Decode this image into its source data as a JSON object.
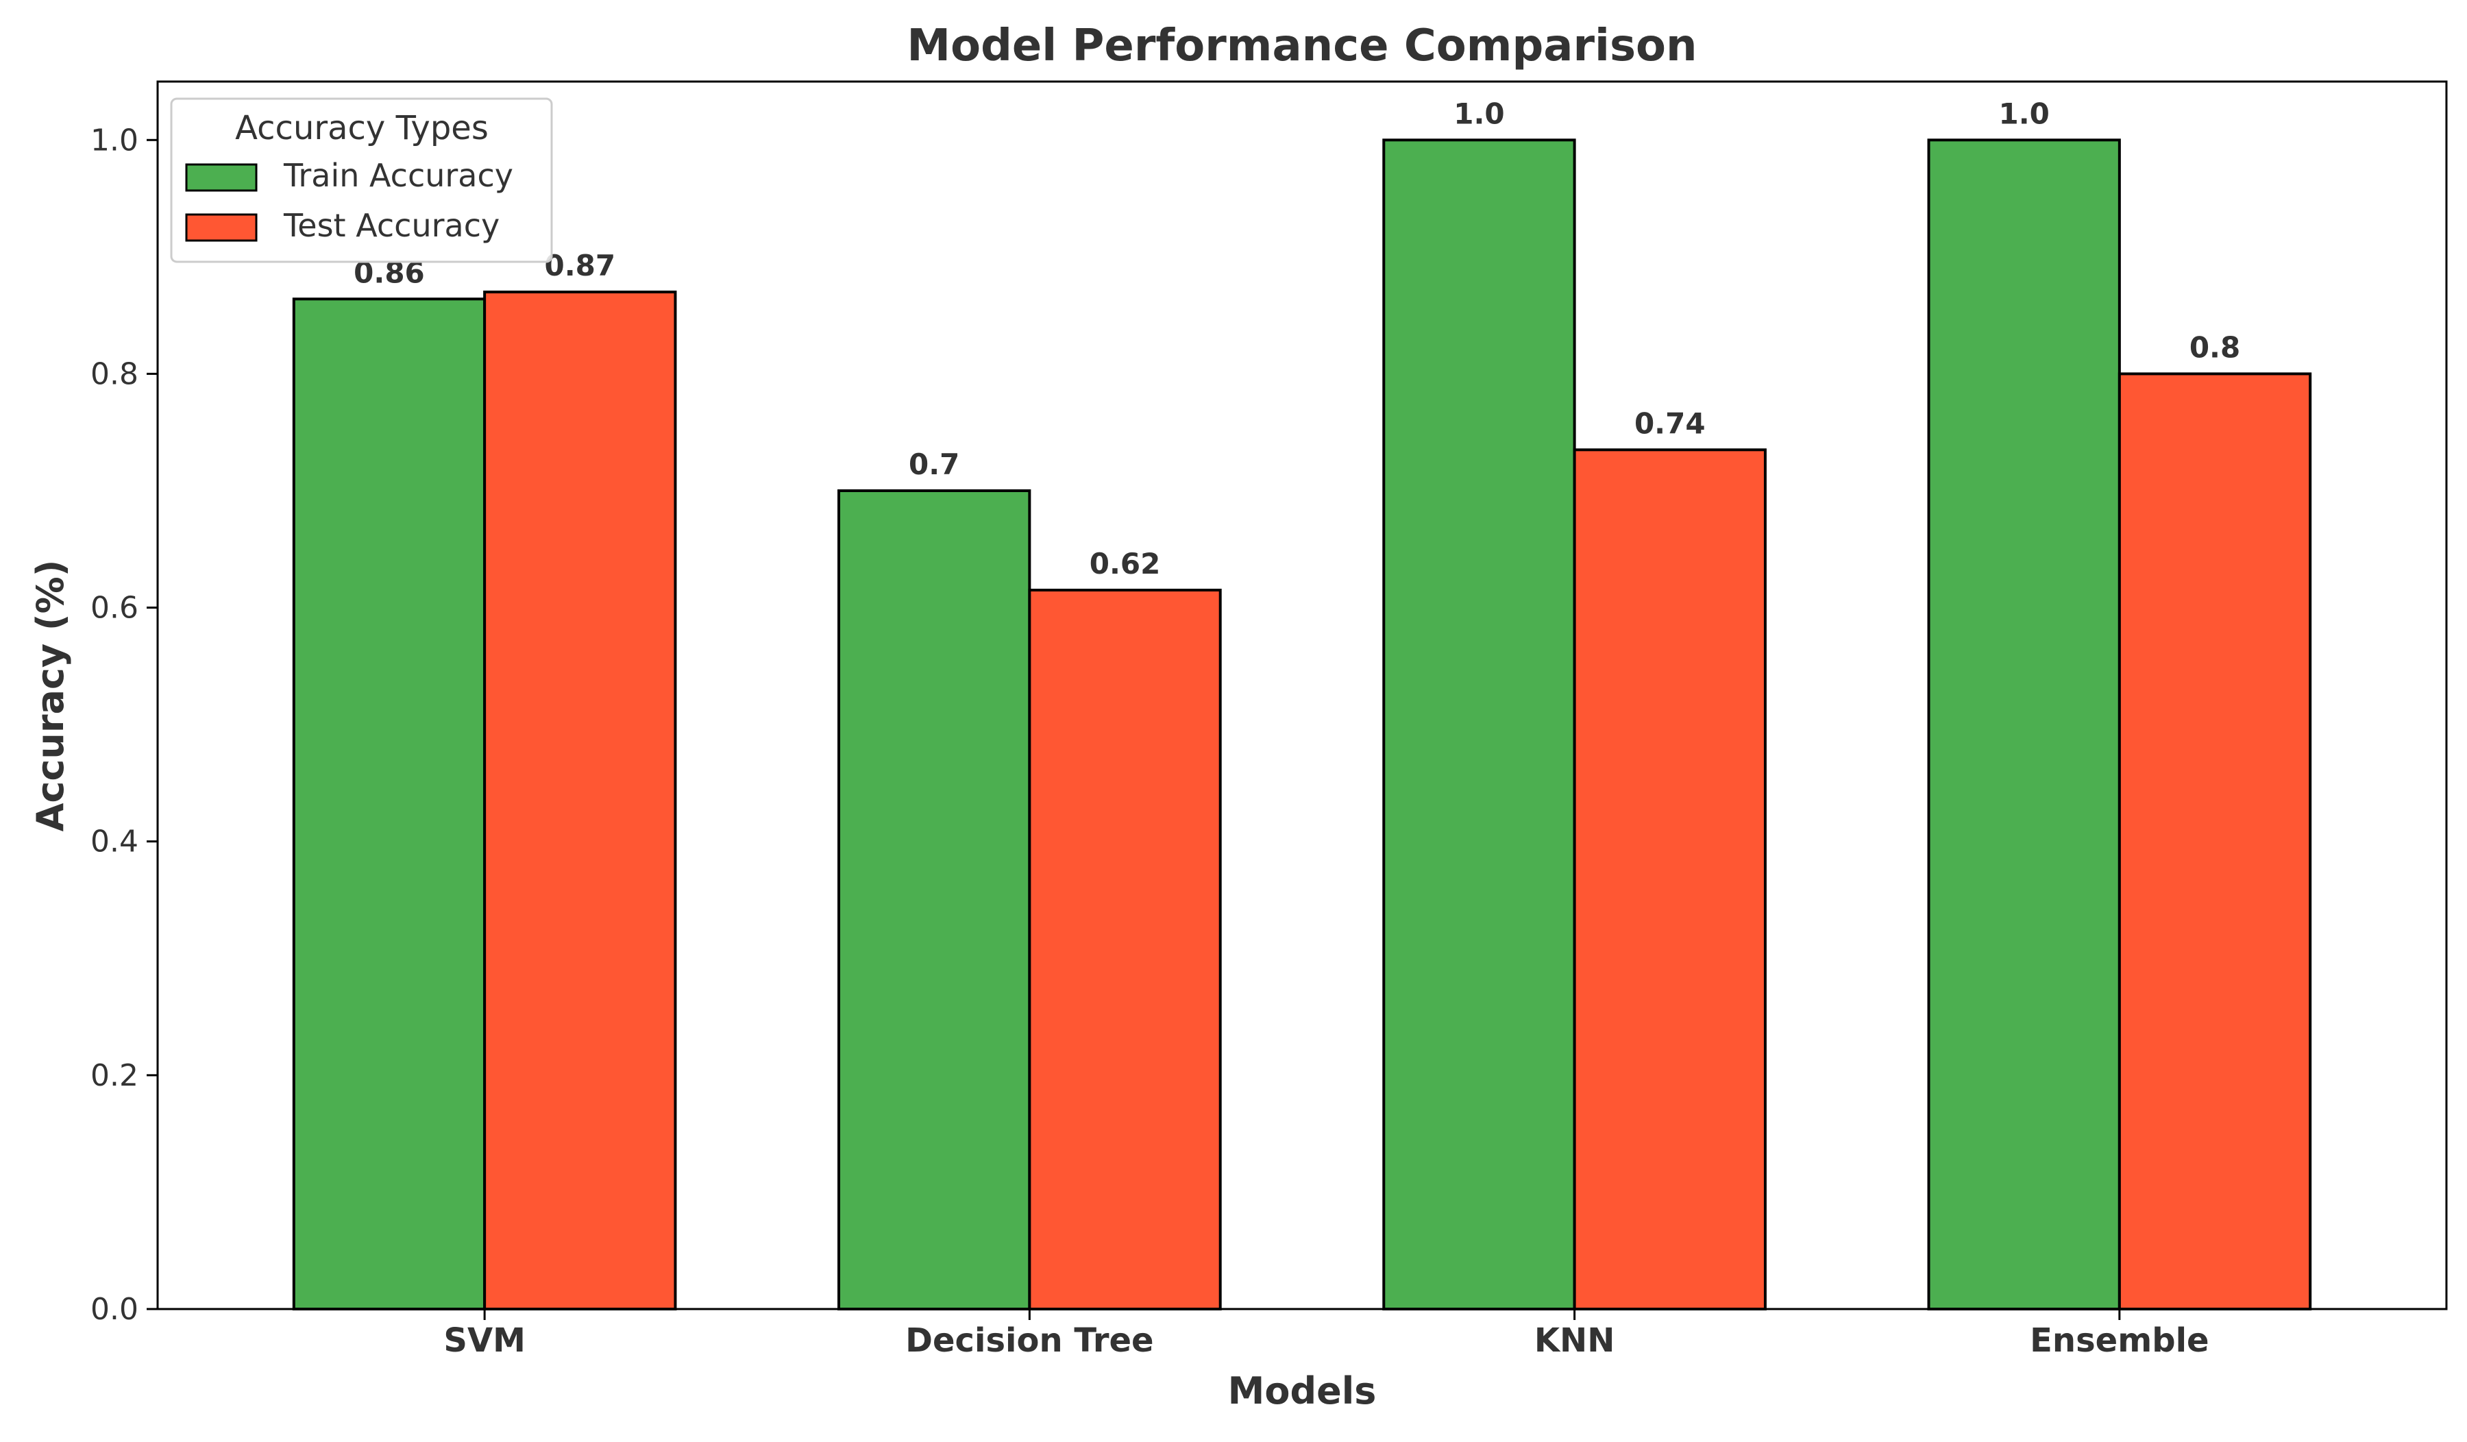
{
  "chart_data": {
    "type": "bar",
    "title": "Model Performance Comparison",
    "xlabel": "Models",
    "ylabel": "Accuracy (%)",
    "categories": [
      "SVM",
      "Decision Tree",
      "KNN",
      "Ensemble"
    ],
    "ylim": [
      0,
      1.05
    ],
    "yticks": [
      0.0,
      0.2,
      0.4,
      0.6,
      0.8,
      1.0
    ],
    "ytick_labels": [
      "0.0",
      "0.2",
      "0.4",
      "0.6",
      "0.8",
      "1.0"
    ],
    "grid": false,
    "series": [
      {
        "name": "Train Accuracy",
        "color": "#4caf50",
        "values": [
          0.864,
          0.7,
          1.0,
          1.0
        ],
        "labels": [
          "0.86",
          "0.7",
          "1.0",
          "1.0"
        ]
      },
      {
        "name": "Test Accuracy",
        "color": "#ff5733",
        "values": [
          0.87,
          0.615,
          0.735,
          0.8
        ],
        "labels": [
          "0.87",
          "0.62",
          "0.74",
          "0.8"
        ]
      }
    ],
    "legend": {
      "title": "Accuracy Types",
      "position": "top-left"
    },
    "bar_edge_color": "#000000"
  }
}
